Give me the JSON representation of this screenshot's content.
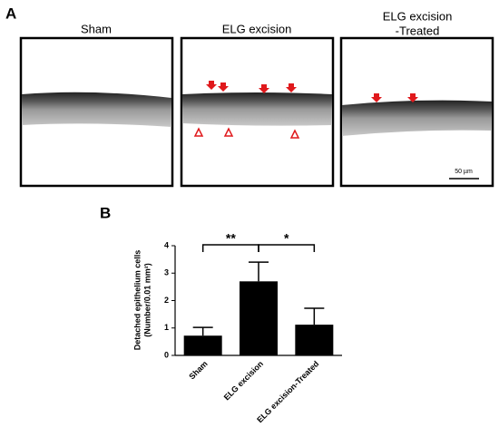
{
  "panel_a": {
    "label": "A",
    "images": [
      {
        "title": [
          "Sham"
        ]
      },
      {
        "title": [
          "ELG excision"
        ]
      },
      {
        "title": [
          "ELG excision",
          "-Treated"
        ]
      }
    ],
    "scale_bar": "50 µm"
  },
  "chart_data": {
    "type": "bar",
    "label": "B",
    "ylabel": [
      "Detached epithelium cells",
      "(Number/0.01 mm²)"
    ],
    "categories": [
      "Sham",
      "ELG excision",
      "ELG excision-Treated"
    ],
    "values": [
      0.72,
      2.7,
      1.12
    ],
    "errors": [
      0.3,
      0.7,
      0.6
    ],
    "color": "#000000",
    "ylim": [
      0,
      4
    ],
    "yticks": [
      0,
      1,
      2,
      3,
      4
    ],
    "significance": [
      {
        "from": 0,
        "to": 1,
        "label": "**"
      },
      {
        "from": 1,
        "to": 2,
        "label": "*"
      }
    ]
  }
}
